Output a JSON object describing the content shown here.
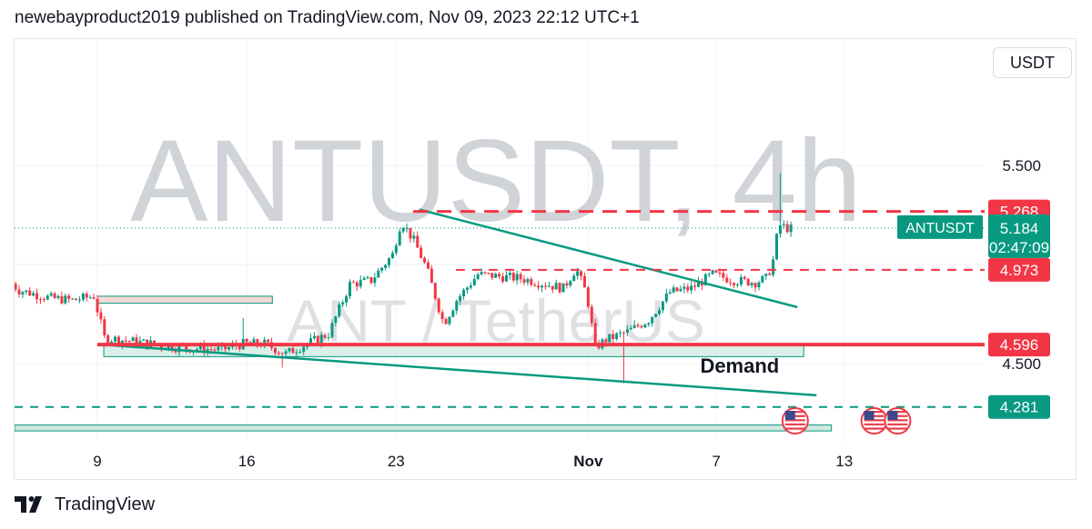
{
  "header": {
    "published_line": "newebayproduct2019 published on TradingView.com, Nov 09, 2023 22:12 UTC+1"
  },
  "toolbar": {
    "currency_label": "USDT"
  },
  "footer": {
    "brand": "TradingView"
  },
  "colors": {
    "up": "#089981",
    "down": "#f23645",
    "accent_green": "#089981",
    "accent_red": "#f23645",
    "watermark": "#c8cbd1"
  },
  "chart_data": {
    "type": "candlestick",
    "watermark": {
      "title": "ANTUSDT, 4h",
      "subtitle": "ANT / TetherUS"
    },
    "symbol": "ANTUSDT",
    "timeframe": "4h",
    "ylim": [
      4.2,
      5.7
    ],
    "y_ticks": [
      {
        "label": "5.500",
        "value": 5.5
      },
      {
        "label": "4.500",
        "value": 4.5
      }
    ],
    "x_ticks": [
      {
        "label": "9",
        "day": 0,
        "bold": false
      },
      {
        "label": "16",
        "day": 7,
        "bold": false
      },
      {
        "label": "23",
        "day": 14,
        "bold": false
      },
      {
        "label": "Nov",
        "day": 23,
        "bold": true
      },
      {
        "label": "7",
        "day": 29,
        "bold": false
      },
      {
        "label": "13",
        "day": 35,
        "bold": false
      }
    ],
    "price_tags": [
      {
        "label": "5.268",
        "value": 5.268,
        "kind": "red"
      },
      {
        "label": "5.184",
        "value": 5.184,
        "kind": "last",
        "name": "ANTUSDT",
        "countdown": "02:47:09"
      },
      {
        "label": "4.973",
        "value": 4.973,
        "kind": "red"
      },
      {
        "label": "4.596",
        "value": 4.596,
        "kind": "red"
      },
      {
        "label": "4.281",
        "value": 4.281,
        "kind": "green"
      }
    ],
    "annotations": [
      {
        "text": "Demand",
        "day": 30.1,
        "value": 4.455
      }
    ],
    "path_keypoints": [
      [
        -4,
        4.92
      ],
      [
        -3.5,
        4.87
      ],
      [
        -2,
        4.83
      ],
      [
        -1,
        4.82
      ],
      [
        0,
        4.84
      ],
      [
        0.5,
        4.63
      ],
      [
        2,
        4.61
      ],
      [
        4,
        4.58
      ],
      [
        6,
        4.57
      ],
      [
        7,
        4.6
      ],
      [
        8,
        4.6
      ],
      [
        9,
        4.55
      ],
      [
        10,
        4.6
      ],
      [
        11,
        4.65
      ],
      [
        12,
        4.9
      ],
      [
        13,
        4.92
      ],
      [
        14,
        5.05
      ],
      [
        14.4,
        5.22
      ],
      [
        15,
        5.12
      ],
      [
        15.6,
        4.98
      ],
      [
        16.4,
        4.7
      ],
      [
        17,
        4.82
      ],
      [
        18,
        4.95
      ],
      [
        20,
        4.93
      ],
      [
        22,
        4.88
      ],
      [
        22.6,
        4.98
      ],
      [
        23.1,
        4.85
      ],
      [
        23.5,
        4.58
      ],
      [
        24,
        4.62
      ],
      [
        25,
        4.66
      ],
      [
        26,
        4.72
      ],
      [
        27,
        4.86
      ],
      [
        28,
        4.88
      ],
      [
        29,
        4.95
      ],
      [
        30,
        4.92
      ],
      [
        31,
        4.91
      ],
      [
        31.5,
        4.93
      ],
      [
        31.8,
        5.0
      ],
      [
        32.1,
        5.2
      ],
      [
        32.6,
        5.18
      ]
    ]
  }
}
